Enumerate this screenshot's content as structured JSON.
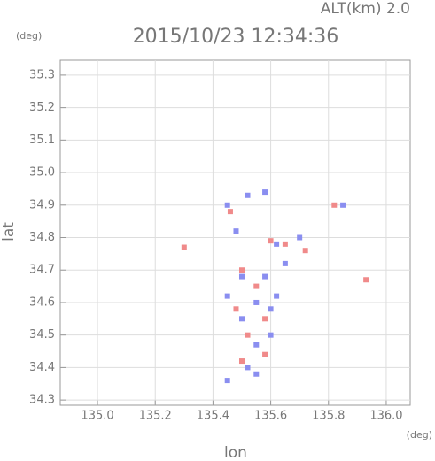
{
  "chart_data": {
    "type": "scatter",
    "title": "2015/10/23 12:34:36",
    "annotation": "ALT(km) 2.0",
    "x_label": "lon",
    "y_label": "lat",
    "x_unit": "(deg)",
    "y_unit": "(deg)",
    "xlim": [
      134.871,
      136.083
    ],
    "ylim": [
      34.284,
      35.346
    ],
    "xticks": [
      {
        "value": 135,
        "label": "135.0"
      },
      135.2,
      135.4,
      135.6,
      135.8,
      {
        "value": 136,
        "label": "136.0"
      }
    ],
    "yticks": [
      34.3,
      34.4,
      34.5,
      34.6,
      34.7,
      34.8,
      34.9,
      {
        "value": 35,
        "label": "35.0"
      },
      35.1,
      35.2,
      35.3
    ],
    "grid": true,
    "series": [
      {
        "color": "#8a8ef0",
        "x": [
          135.52,
          135.45,
          135.58,
          135.48,
          135.62,
          135.7,
          135.85,
          135.58,
          135.45,
          135.55,
          135.6,
          135.5,
          135.55,
          135.6,
          135.52,
          135.55,
          135.45,
          135.65,
          135.5,
          135.62
        ],
        "y": [
          34.93,
          34.9,
          34.94,
          34.82,
          34.78,
          34.8,
          34.9,
          34.68,
          34.62,
          34.6,
          34.58,
          34.55,
          34.47,
          34.5,
          34.4,
          34.38,
          34.36,
          34.72,
          34.68,
          34.62
        ]
      },
      {
        "color": "#f08a8a",
        "x": [
          135.3,
          135.93,
          135.6,
          135.72,
          135.5,
          135.55,
          135.48,
          135.58,
          135.52,
          135.58,
          135.5,
          135.65,
          135.46,
          135.82
        ],
        "y": [
          34.77,
          34.67,
          34.79,
          34.76,
          34.7,
          34.65,
          34.58,
          34.55,
          34.5,
          34.44,
          34.42,
          34.78,
          34.88,
          34.9
        ]
      }
    ]
  }
}
